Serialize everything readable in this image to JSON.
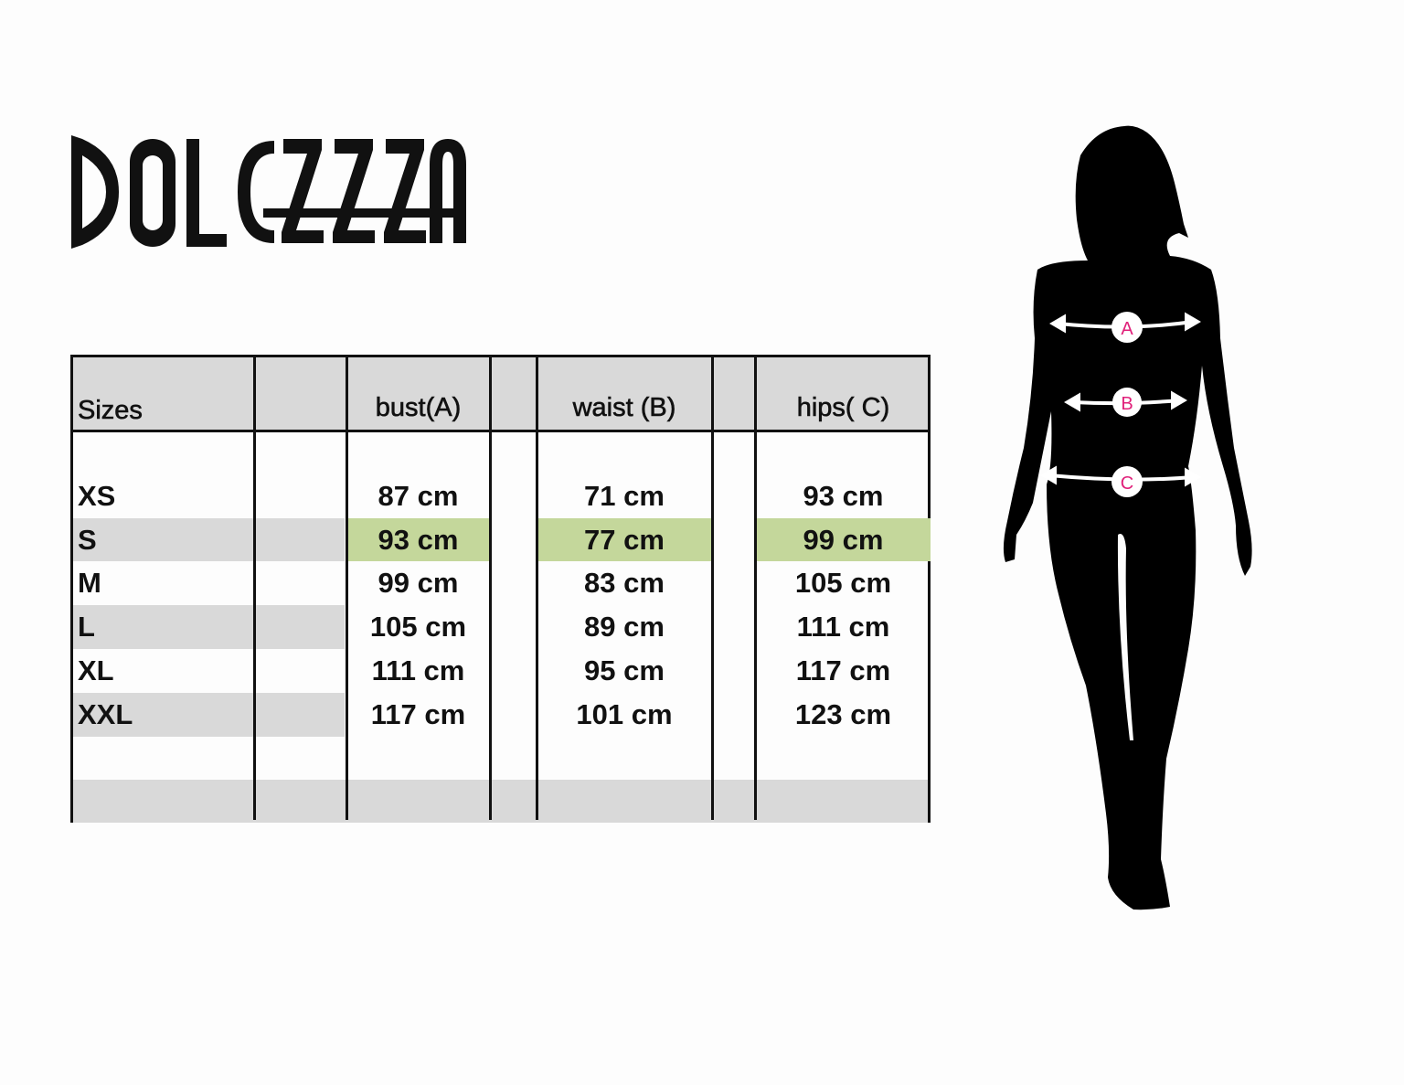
{
  "brand": {
    "logo_text": "DOLCEZZA"
  },
  "table": {
    "headers": [
      "Sizes",
      "",
      "bust(A)",
      "",
      "waist (B)",
      "",
      "hips( C)"
    ],
    "rows": [
      {
        "size": "XS",
        "bust": "87 cm",
        "waist": "71 cm",
        "hips": "93 cm"
      },
      {
        "size": "S",
        "bust": "93 cm",
        "waist": "77 cm",
        "hips": "99 cm",
        "highlighted": true
      },
      {
        "size": "M",
        "bust": "99 cm",
        "waist": "83 cm",
        "hips": "105 cm"
      },
      {
        "size": "L",
        "bust": "105 cm",
        "waist": "89 cm",
        "hips": "111 cm"
      },
      {
        "size": "XL",
        "bust": "111 cm",
        "waist": "95 cm",
        "hips": "117 cm"
      },
      {
        "size": "XXL",
        "bust": "117 cm",
        "waist": "101 cm",
        "hips": "123 cm"
      }
    ],
    "colors": {
      "header_bg": "#d9d9d9",
      "stripe_bg": "#d9d9d9",
      "highlight_bg": "#c4d79b",
      "marker": "#e0207a"
    }
  },
  "figure": {
    "markers": [
      "A",
      "B",
      "C"
    ]
  }
}
